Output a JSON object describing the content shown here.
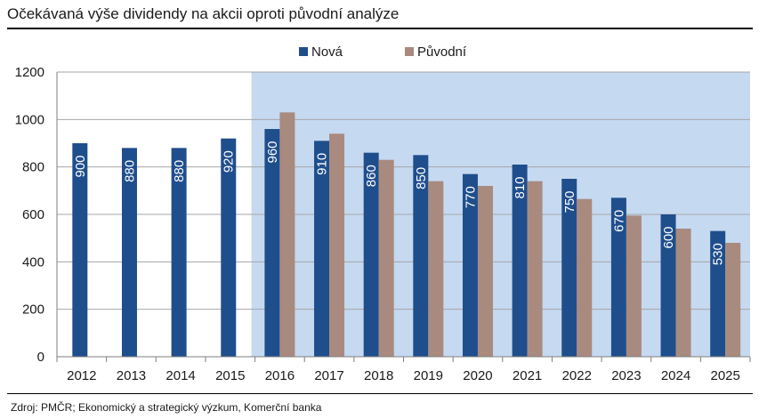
{
  "title": "Očekávaná výše dividendy na akcii oproti původní analýze",
  "source": "Zdroj: PMČR; Ekonomický a strategický výzkum, Komerční banka",
  "chart_data": {
    "type": "bar",
    "categories": [
      "2012",
      "2013",
      "2014",
      "2015",
      "2016",
      "2017",
      "2018",
      "2019",
      "2020",
      "2021",
      "2022",
      "2023",
      "2024",
      "2025"
    ],
    "series": [
      {
        "name": "Nová",
        "color": "#1f4e8c",
        "values": [
          900,
          880,
          880,
          920,
          960,
          910,
          860,
          850,
          770,
          810,
          750,
          670,
          600,
          530
        ],
        "labels": [
          "900",
          "880",
          "880",
          "920",
          "960",
          "910",
          "860",
          "850",
          "770",
          "810",
          "750",
          "670",
          "600",
          "530"
        ]
      },
      {
        "name": "Původní",
        "color": "#a98a7f",
        "values": [
          null,
          null,
          null,
          null,
          1030,
          940,
          830,
          740,
          720,
          740,
          665,
          595,
          540,
          480
        ]
      }
    ],
    "ylim": [
      0,
      1200
    ],
    "yticks": [
      "0",
      "200",
      "400",
      "600",
      "800",
      "1000",
      "1200"
    ],
    "grid": true,
    "legend": "top-center",
    "shaded_region": {
      "from": "2016",
      "to": "2025",
      "color": "#c5d9f1"
    }
  }
}
